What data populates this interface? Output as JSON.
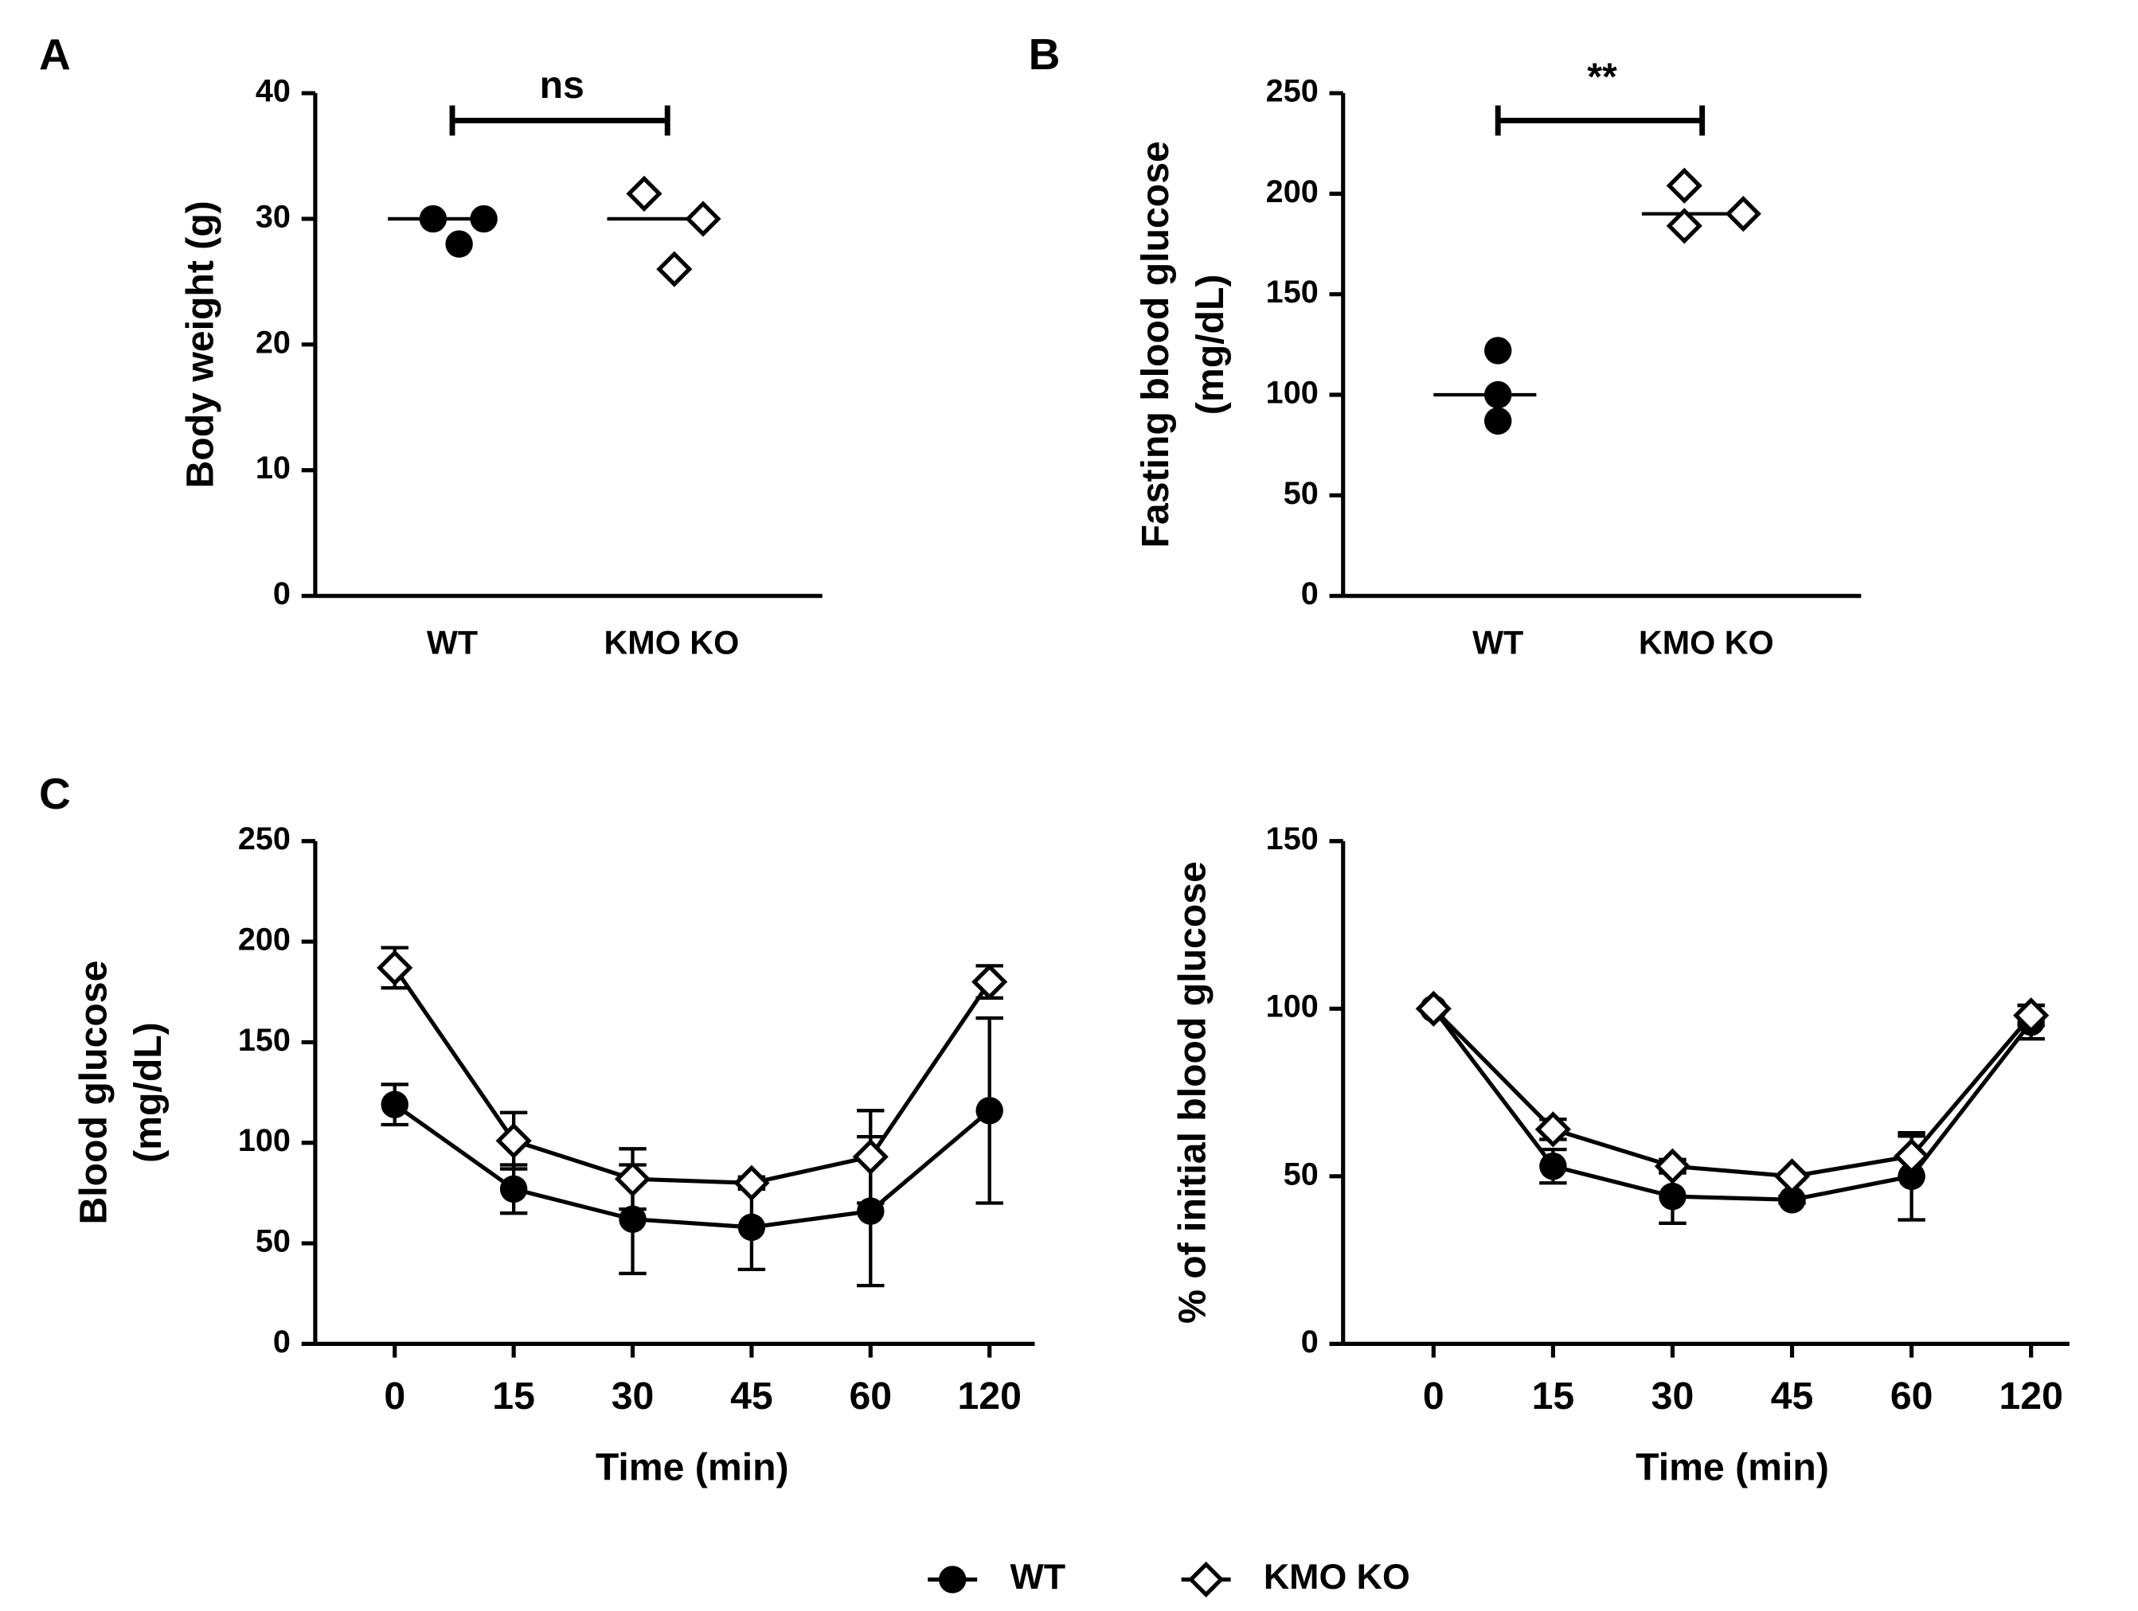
{
  "chart_data": [
    {
      "type": "strip",
      "panel_label": "A",
      "ylabel": [
        "Body weight (g)"
      ],
      "categories": [
        "WT",
        "KMO KO"
      ],
      "markers": [
        "circle",
        "diamond"
      ],
      "values": [
        [
          30,
          28,
          30
        ],
        [
          32,
          26,
          30
        ]
      ],
      "medians": [
        30,
        30
      ],
      "significance": "ns",
      "ylim": [
        0,
        40
      ],
      "yticks": [
        0,
        10,
        20,
        30,
        40
      ]
    },
    {
      "type": "strip",
      "panel_label": "B",
      "ylabel": [
        "Fasting blood glucose",
        "(mg/dL)"
      ],
      "categories": [
        "WT",
        "KMO KO"
      ],
      "markers": [
        "circle",
        "diamond"
      ],
      "values": [
        [
          122,
          100,
          87
        ],
        [
          204,
          184,
          190
        ]
      ],
      "medians": [
        100,
        190
      ],
      "significance": "**",
      "ylim": [
        0,
        250
      ],
      "yticks": [
        0,
        50,
        100,
        150,
        200,
        250
      ]
    },
    {
      "type": "line",
      "panel_label": "C",
      "ylabel": [
        "Blood glucose",
        "(mg/dL)"
      ],
      "xlabel": "Time (min)",
      "categories": [
        "0",
        "15",
        "30",
        "45",
        "60",
        "120"
      ],
      "series": [
        {
          "name": "WT",
          "color": "#000000",
          "marker": "circle",
          "values": [
            119,
            77,
            62,
            58,
            66,
            116
          ],
          "errors": [
            10,
            12,
            27,
            21,
            37,
            46
          ]
        },
        {
          "name": "KMO KO",
          "color": "#000000",
          "marker": "diamond",
          "values": [
            187,
            101,
            82,
            80,
            93,
            180
          ],
          "errors": [
            10,
            14,
            15,
            3,
            23,
            8
          ]
        }
      ],
      "ylim": [
        0,
        250
      ],
      "yticks": [
        0,
        50,
        100,
        150,
        200,
        250
      ]
    },
    {
      "type": "line",
      "ylabel": [
        "% of initial blood glucose"
      ],
      "xlabel": "Time (min)",
      "categories": [
        "0",
        "15",
        "30",
        "45",
        "60",
        "120"
      ],
      "series": [
        {
          "name": "WT",
          "color": "#000000",
          "marker": "circle",
          "values": [
            100,
            53,
            44,
            43,
            50,
            96
          ],
          "errors": [
            0,
            5,
            8,
            1,
            13,
            5
          ]
        },
        {
          "name": "KMO KO",
          "color": "#000000",
          "marker": "diamond",
          "values": [
            100,
            64,
            53,
            50,
            56,
            98
          ],
          "errors": [
            0,
            3,
            2,
            1,
            6,
            3
          ]
        }
      ],
      "ylim": [
        0,
        150
      ],
      "yticks": [
        0,
        50,
        100,
        150
      ]
    }
  ]
}
